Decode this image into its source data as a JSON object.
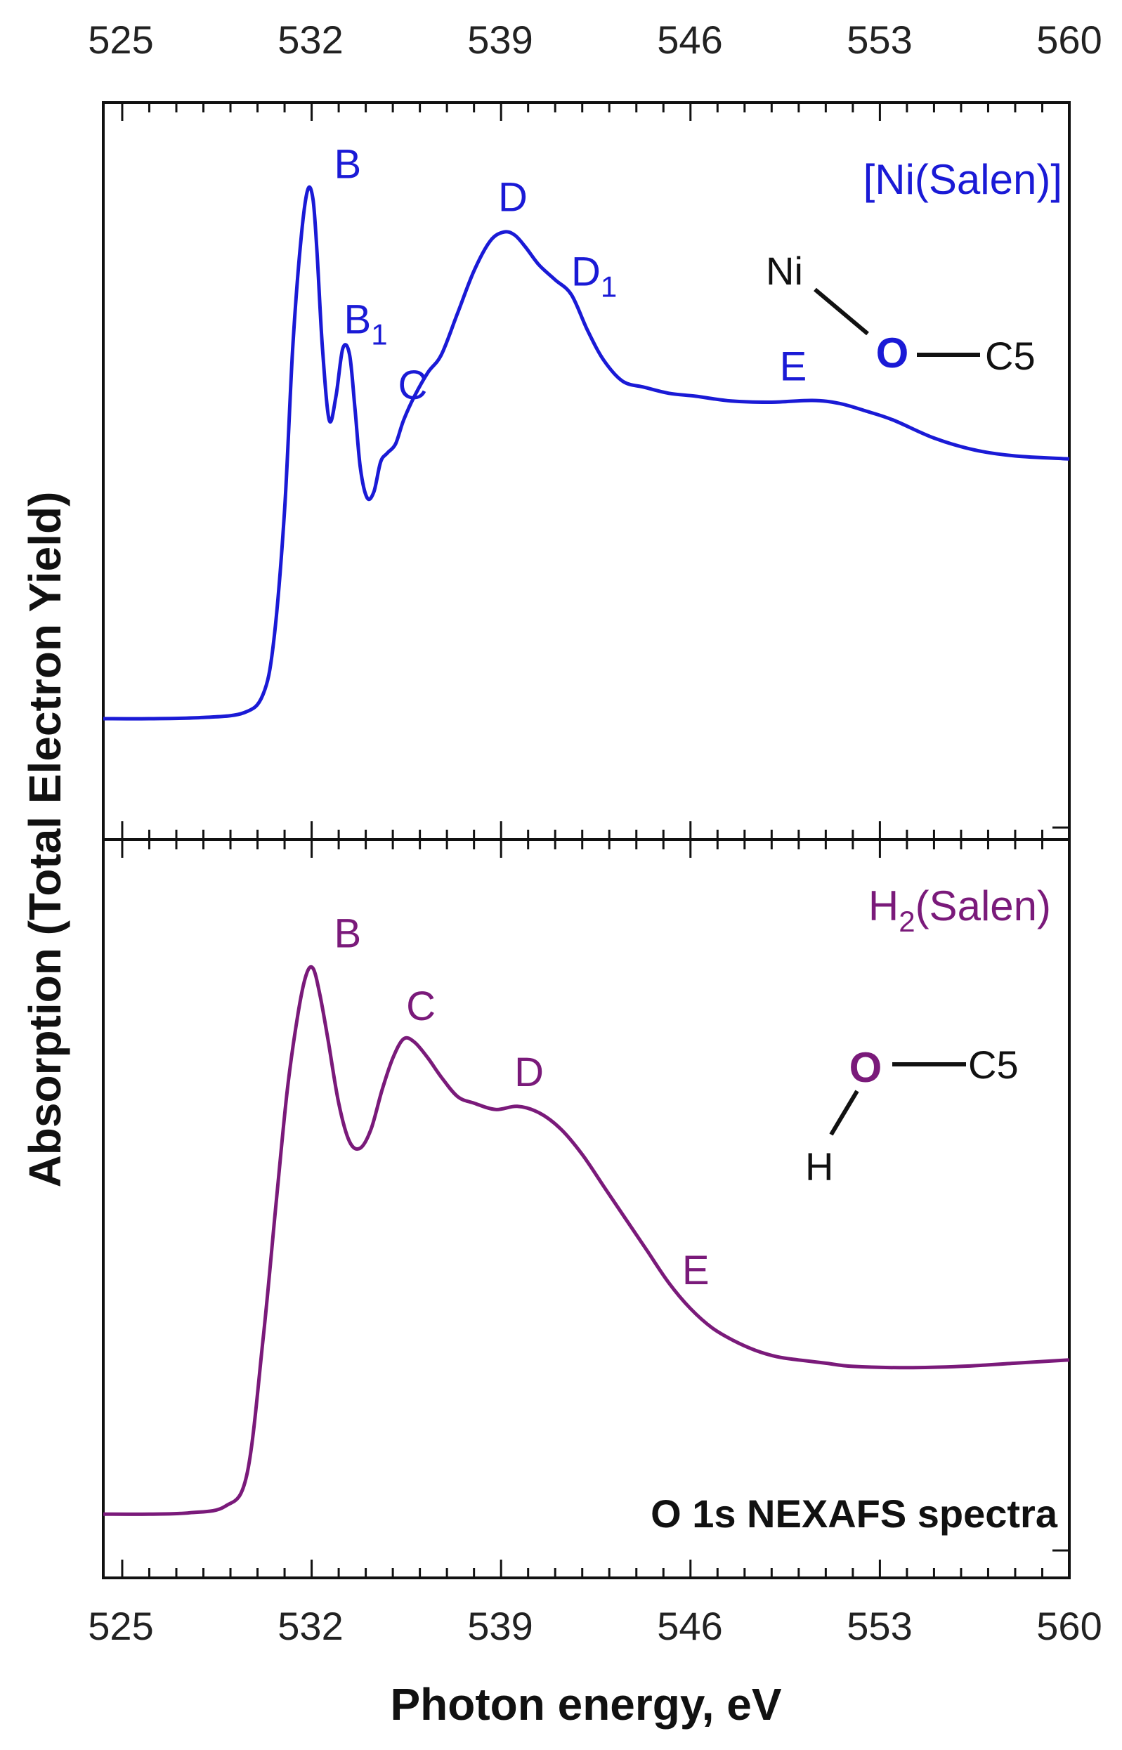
{
  "chart_data": {
    "type": "line",
    "xlabel": "Photon energy, eV",
    "ylabel": "Absorption (Total Electron Yield)",
    "xlim": [
      524.3,
      560
    ],
    "x_ticks": [
      "525",
      "532",
      "539",
      "546",
      "553",
      "560"
    ],
    "annotation": "O 1s NEXAFS spectra",
    "grid": false,
    "colors": {
      "ni": "#1a1ad6",
      "h2": "#7a1a7a",
      "axis": "#111111"
    },
    "panels": [
      {
        "name_main": "[Ni(Salen)]",
        "name_sub": "",
        "name_tail": "",
        "color": "#1a1ad6",
        "ylim": [
          0,
          1
        ],
        "x": [
          524.3,
          526,
          528,
          529.5,
          530.2,
          530.6,
          531.0,
          531.3,
          531.6,
          531.85,
          532.05,
          532.2,
          532.4,
          532.65,
          532.9,
          533.15,
          533.4,
          533.6,
          533.8,
          534.05,
          534.3,
          534.55,
          534.8,
          535.1,
          535.4,
          535.8,
          536.3,
          536.8,
          537.4,
          538.0,
          538.6,
          539.1,
          539.5,
          539.9,
          540.4,
          541.0,
          541.6,
          542.2,
          542.8,
          543.5,
          544.3,
          545.2,
          546.2,
          547.5,
          549,
          550.5,
          551.5,
          552.5,
          553.5,
          555,
          556.5,
          558,
          560
        ],
        "y": [
          0.1,
          0.1,
          0.102,
          0.11,
          0.14,
          0.23,
          0.45,
          0.72,
          0.9,
          0.985,
          0.97,
          0.88,
          0.72,
          0.6,
          0.64,
          0.72,
          0.71,
          0.62,
          0.52,
          0.47,
          0.48,
          0.53,
          0.545,
          0.56,
          0.6,
          0.64,
          0.68,
          0.71,
          0.78,
          0.85,
          0.9,
          0.915,
          0.91,
          0.89,
          0.86,
          0.835,
          0.81,
          0.75,
          0.7,
          0.665,
          0.655,
          0.645,
          0.64,
          0.632,
          0.63,
          0.633,
          0.628,
          0.615,
          0.6,
          0.57,
          0.55,
          0.54,
          0.535
        ],
        "peaks": [
          {
            "label": "B",
            "sub": "",
            "x": 532.05
          },
          {
            "label": "B",
            "sub": "1",
            "x": 533.4
          },
          {
            "label": "C",
            "sub": "",
            "x": 535.4
          },
          {
            "label": "D",
            "sub": "",
            "x": 539.1
          },
          {
            "label": "D",
            "sub": "1",
            "x": 541.8
          },
          {
            "label": "E",
            "sub": "",
            "x": 549.5
          }
        ],
        "molecule": {
          "metal": "Ni",
          "oxygen": "O",
          "carbon": "C5"
        }
      },
      {
        "name_main": "H",
        "name_sub": "2",
        "name_tail": "(Salen)",
        "color": "#7a1a7a",
        "ylim": [
          0,
          1
        ],
        "x": [
          524.3,
          526,
          527.5,
          528.8,
          529.6,
          530.2,
          530.7,
          531.1,
          531.5,
          531.8,
          532.05,
          532.3,
          532.6,
          533.0,
          533.4,
          533.8,
          534.2,
          534.6,
          535.0,
          535.4,
          535.8,
          536.3,
          536.8,
          537.4,
          538.0,
          538.8,
          539.6,
          540.4,
          541.2,
          542.0,
          542.8,
          543.6,
          544.4,
          545.2,
          546.0,
          546.8,
          547.6,
          548.4,
          549.2,
          550,
          551,
          552,
          554,
          556,
          558,
          560
        ],
        "y": [
          0.06,
          0.06,
          0.062,
          0.072,
          0.12,
          0.33,
          0.55,
          0.72,
          0.84,
          0.9,
          0.91,
          0.87,
          0.8,
          0.7,
          0.64,
          0.63,
          0.66,
          0.72,
          0.77,
          0.8,
          0.795,
          0.77,
          0.74,
          0.71,
          0.7,
          0.69,
          0.695,
          0.685,
          0.66,
          0.62,
          0.57,
          0.52,
          0.47,
          0.42,
          0.38,
          0.35,
          0.33,
          0.315,
          0.305,
          0.3,
          0.295,
          0.29,
          0.288,
          0.29,
          0.295,
          0.3
        ],
        "peaks": [
          {
            "label": "B",
            "sub": "",
            "x": 532.05
          },
          {
            "label": "C",
            "sub": "",
            "x": 535.7
          },
          {
            "label": "D",
            "sub": "",
            "x": 539.7
          },
          {
            "label": "E",
            "sub": "",
            "x": 545.9
          }
        ],
        "molecule": {
          "hydrogen": "H",
          "oxygen": "O",
          "carbon": "C5"
        }
      }
    ]
  }
}
